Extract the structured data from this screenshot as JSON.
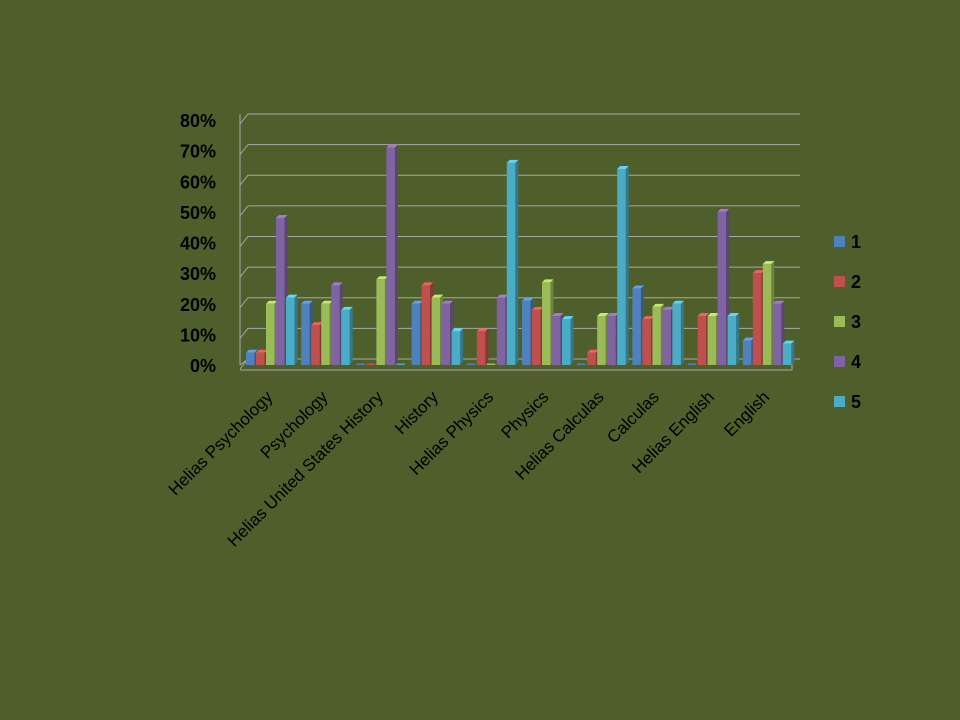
{
  "chart_data": {
    "type": "bar",
    "title": "",
    "xlabel": "",
    "ylabel": "",
    "ylim": [
      0,
      80
    ],
    "y_tick_labels": [
      "0%",
      "10%",
      "20%",
      "30%",
      "40%",
      "50%",
      "60%",
      "70%",
      "80%"
    ],
    "y_tick_values": [
      0,
      10,
      20,
      30,
      40,
      50,
      60,
      70,
      80
    ],
    "grid": true,
    "legend_position": "right",
    "categories": [
      "Helias Psychology",
      "Psychology",
      "Helias United States History",
      "History",
      "Helias Physics",
      "Physics",
      "Helias Calculas",
      "Calculas",
      "Helias English",
      "English"
    ],
    "series": [
      {
        "name": "1",
        "color": "#4f81bd",
        "values": [
          4,
          20,
          0,
          20,
          0,
          21,
          0,
          25,
          0,
          8
        ]
      },
      {
        "name": "2",
        "color": "#c0504d",
        "values": [
          4,
          13,
          0,
          26,
          11,
          18,
          4,
          15,
          16,
          30
        ]
      },
      {
        "name": "3",
        "color": "#9bbb59",
        "values": [
          20,
          20,
          28,
          22,
          0,
          27,
          16,
          19,
          16,
          33
        ]
      },
      {
        "name": "4",
        "color": "#8064a2",
        "values": [
          48,
          26,
          71,
          20,
          22,
          16,
          16,
          18,
          50,
          20
        ]
      },
      {
        "name": "5",
        "color": "#4bacc6",
        "values": [
          22,
          18,
          0,
          11,
          66,
          15,
          64,
          20,
          16,
          7
        ]
      }
    ]
  }
}
